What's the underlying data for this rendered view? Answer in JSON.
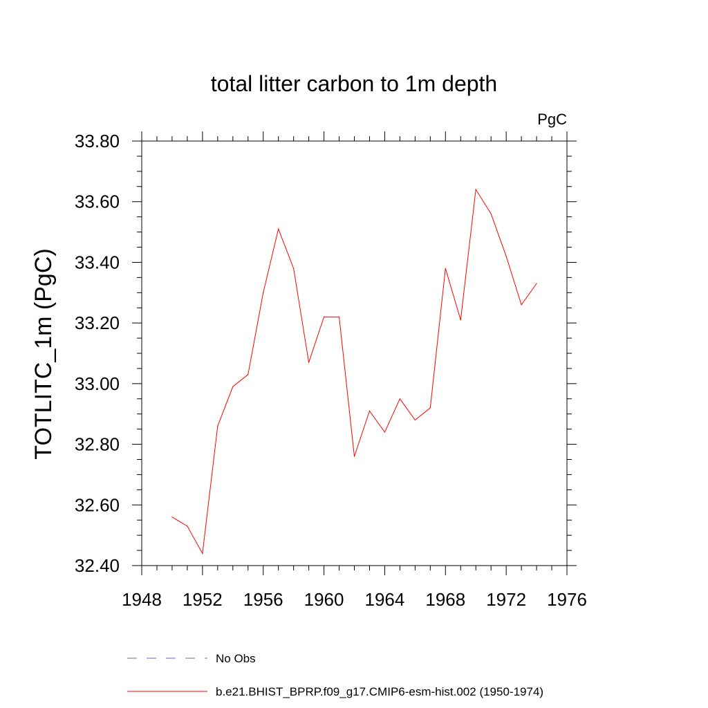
{
  "chart_data": {
    "type": "line",
    "title": "total litter carbon to 1m depth",
    "units": "PgC",
    "xlabel": "",
    "ylabel": "TOTLITC_1m  (PgC)",
    "xlim": [
      1948,
      1976
    ],
    "ylim": [
      32.4,
      33.8
    ],
    "xticks": [
      "1948",
      "1952",
      "1956",
      "1960",
      "1964",
      "1968",
      "1972",
      "1976"
    ],
    "yticks": [
      "32.40",
      "32.60",
      "32.80",
      "33.00",
      "33.20",
      "33.40",
      "33.60",
      "33.80"
    ],
    "grid": false,
    "legend_position": "bottom",
    "series": [
      {
        "name": "No Obs",
        "color": "#6666cc",
        "dash": "dashed",
        "x": [],
        "values": []
      },
      {
        "name": "b.e21.BHIST_BPRP.f09_g17.CMIP6-esm-hist.002 (1950-1974)",
        "color": "#ff0000",
        "dash": "solid",
        "x": [
          1950,
          1951,
          1952,
          1953,
          1954,
          1955,
          1956,
          1957,
          1958,
          1959,
          1960,
          1961,
          1962,
          1963,
          1964,
          1965,
          1966,
          1967,
          1968,
          1969,
          1970,
          1971,
          1972,
          1973,
          1974
        ],
        "values": [
          32.56,
          32.53,
          32.44,
          32.86,
          32.99,
          33.03,
          33.3,
          33.51,
          33.38,
          33.07,
          33.22,
          33.22,
          32.76,
          32.91,
          32.84,
          32.95,
          32.88,
          32.92,
          33.38,
          33.21,
          33.64,
          33.56,
          33.42,
          33.26,
          33.33
        ]
      }
    ]
  }
}
